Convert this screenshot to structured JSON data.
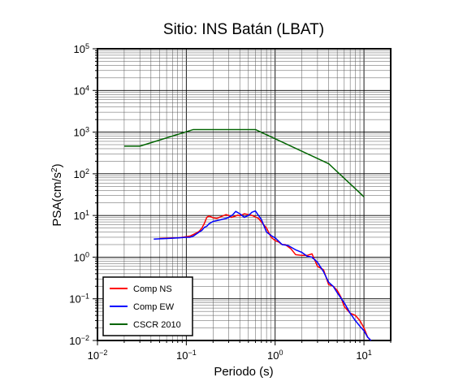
{
  "chart_data": {
    "type": "line",
    "title": "Sitio: INS Batán (LBAT)",
    "xlabel": "Periodo (s)",
    "ylabel": "PSA(cm/s²)",
    "ylabel_parts": {
      "base": "PSA(cm/s",
      "sup": "2",
      "end": ")"
    },
    "xscale": "log",
    "yscale": "log",
    "xlim": [
      0.01,
      20
    ],
    "ylim": [
      0.01,
      100000
    ],
    "grid": true,
    "legend_position": "bottom-left",
    "x_ticks": [
      {
        "base": "10",
        "exp": "−2",
        "value": 0.01
      },
      {
        "base": "10",
        "exp": "−1",
        "value": 0.1
      },
      {
        "base": "10",
        "exp": "0",
        "value": 1
      },
      {
        "base": "10",
        "exp": "1",
        "value": 10
      }
    ],
    "y_ticks": [
      {
        "base": "10",
        "exp": "−2",
        "value": 0.01
      },
      {
        "base": "10",
        "exp": "−1",
        "value": 0.1
      },
      {
        "base": "10",
        "exp": "0",
        "value": 1
      },
      {
        "base": "10",
        "exp": "1",
        "value": 10
      },
      {
        "base": "10",
        "exp": "2",
        "value": 100
      },
      {
        "base": "10",
        "exp": "3",
        "value": 1000
      },
      {
        "base": "10",
        "exp": "4",
        "value": 10000
      },
      {
        "base": "10",
        "exp": "5",
        "value": 100000
      }
    ],
    "series": [
      {
        "name": "Comp NS",
        "color": "#ff0000",
        "points": [
          [
            0.05,
            2.8
          ],
          [
            0.06,
            2.85
          ],
          [
            0.07,
            2.9
          ],
          [
            0.08,
            2.9
          ],
          [
            0.09,
            3.0
          ],
          [
            0.1,
            3.1
          ],
          [
            0.11,
            3.2
          ],
          [
            0.12,
            3.5
          ],
          [
            0.13,
            3.8
          ],
          [
            0.14,
            4.2
          ],
          [
            0.15,
            5.0
          ],
          [
            0.16,
            6.5
          ],
          [
            0.17,
            9.0
          ],
          [
            0.18,
            9.7
          ],
          [
            0.2,
            8.8
          ],
          [
            0.22,
            8.5
          ],
          [
            0.25,
            9.5
          ],
          [
            0.28,
            10.5
          ],
          [
            0.3,
            10.0
          ],
          [
            0.32,
            9.0
          ],
          [
            0.35,
            9.5
          ],
          [
            0.38,
            10.2
          ],
          [
            0.4,
            9.8
          ],
          [
            0.45,
            11.0
          ],
          [
            0.5,
            10.5
          ],
          [
            0.55,
            10.0
          ],
          [
            0.6,
            9.2
          ],
          [
            0.65,
            8.5
          ],
          [
            0.7,
            7.0
          ],
          [
            0.8,
            5.0
          ],
          [
            0.9,
            3.0
          ],
          [
            1.0,
            2.5
          ],
          [
            1.1,
            2.3
          ],
          [
            1.2,
            2.0
          ],
          [
            1.3,
            2.0
          ],
          [
            1.5,
            1.6
          ],
          [
            1.7,
            1.15
          ],
          [
            2.0,
            1.1
          ],
          [
            2.3,
            1.1
          ],
          [
            2.6,
            1.2
          ],
          [
            3.0,
            0.6
          ],
          [
            3.5,
            0.5
          ],
          [
            4.0,
            0.22
          ],
          [
            4.5,
            0.2
          ],
          [
            5.0,
            0.16
          ],
          [
            5.5,
            0.11
          ],
          [
            6.0,
            0.065
          ],
          [
            7.0,
            0.045
          ],
          [
            8.0,
            0.04
          ],
          [
            9.0,
            0.03
          ],
          [
            10.0,
            0.02
          ],
          [
            11.0,
            0.012
          ],
          [
            12.0,
            0.01
          ]
        ]
      },
      {
        "name": "Comp EW",
        "color": "#0000ff",
        "points": [
          [
            0.043,
            2.7
          ],
          [
            0.05,
            2.75
          ],
          [
            0.06,
            2.8
          ],
          [
            0.07,
            2.85
          ],
          [
            0.08,
            2.9
          ],
          [
            0.09,
            2.95
          ],
          [
            0.1,
            3.0
          ],
          [
            0.11,
            3.0
          ],
          [
            0.12,
            3.2
          ],
          [
            0.13,
            3.6
          ],
          [
            0.14,
            4.0
          ],
          [
            0.15,
            4.4
          ],
          [
            0.16,
            5.2
          ],
          [
            0.17,
            5.5
          ],
          [
            0.18,
            6.3
          ],
          [
            0.2,
            7.2
          ],
          [
            0.22,
            7.5
          ],
          [
            0.25,
            8.0
          ],
          [
            0.28,
            8.5
          ],
          [
            0.3,
            9.0
          ],
          [
            0.33,
            10.2
          ],
          [
            0.36,
            12.5
          ],
          [
            0.4,
            11.0
          ],
          [
            0.45,
            9.0
          ],
          [
            0.5,
            10.0
          ],
          [
            0.55,
            12.0
          ],
          [
            0.6,
            12.8
          ],
          [
            0.65,
            10.0
          ],
          [
            0.7,
            8.0
          ],
          [
            0.8,
            4.0
          ],
          [
            0.9,
            3.3
          ],
          [
            1.0,
            2.9
          ],
          [
            1.2,
            2.0
          ],
          [
            1.4,
            1.9
          ],
          [
            1.7,
            1.5
          ],
          [
            2.0,
            1.3
          ],
          [
            2.3,
            1.05
          ],
          [
            2.6,
            1.0
          ],
          [
            3.0,
            0.75
          ],
          [
            3.5,
            0.45
          ],
          [
            4.0,
            0.25
          ],
          [
            4.5,
            0.2
          ],
          [
            5.0,
            0.14
          ],
          [
            6.0,
            0.08
          ],
          [
            7.0,
            0.045
          ],
          [
            8.0,
            0.03
          ],
          [
            9.0,
            0.022
          ],
          [
            10.0,
            0.017
          ],
          [
            11.0,
            0.012
          ],
          [
            12.0,
            0.01
          ]
        ]
      },
      {
        "name": "CSCR 2010",
        "color": "#006400",
        "points": [
          [
            0.02,
            460
          ],
          [
            0.03,
            460
          ],
          [
            0.12,
            1150
          ],
          [
            0.6,
            1150
          ],
          [
            4.0,
            175
          ],
          [
            10.0,
            28
          ]
        ]
      }
    ]
  }
}
